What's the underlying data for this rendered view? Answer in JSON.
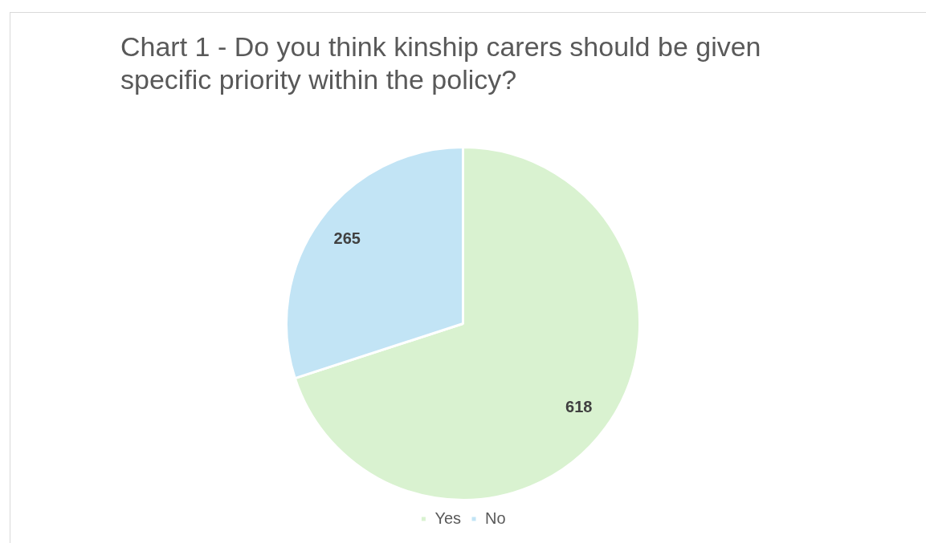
{
  "chart_data": {
    "type": "pie",
    "title": "Chart 1 - Do you think kinship carers should be given specific priority within the policy?",
    "categories": [
      "Yes",
      "No"
    ],
    "values": [
      618,
      265
    ],
    "colors": [
      "#d9f2d0",
      "#c2e4f5"
    ],
    "data_labels": true,
    "legend": "bottom"
  }
}
